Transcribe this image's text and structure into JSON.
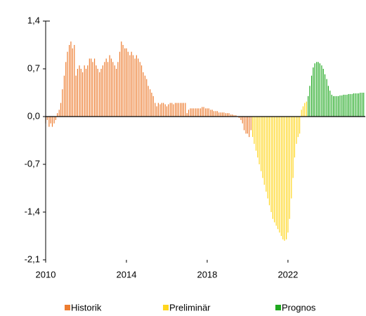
{
  "chart_data": {
    "type": "bar",
    "xlim": [
      2010,
      2025.83
    ],
    "xticks": [
      2010,
      2014,
      2018,
      2022
    ],
    "ylim": [
      -2.1,
      1.4
    ],
    "yticks": [
      {
        "value": 1.4,
        "label": "1,4"
      },
      {
        "value": 0.7,
        "label": "0,7"
      },
      {
        "value": 0,
        "label": "0,0"
      },
      {
        "value": -0.7,
        "label": "-0,7"
      },
      {
        "value": -1.4,
        "label": "-1,4"
      },
      {
        "value": -2.1,
        "label": "-2,1"
      }
    ],
    "legend": "bottom",
    "series": [
      {
        "name": "Historik",
        "color": "#ed7d31",
        "x": [
          2010.0,
          2010.08,
          2010.17,
          2010.25,
          2010.33,
          2010.42,
          2010.5,
          2010.58,
          2010.67,
          2010.75,
          2010.83,
          2010.92,
          2011.0,
          2011.08,
          2011.17,
          2011.25,
          2011.33,
          2011.42,
          2011.5,
          2011.58,
          2011.67,
          2011.75,
          2011.83,
          2011.92,
          2012.0,
          2012.08,
          2012.17,
          2012.25,
          2012.33,
          2012.42,
          2012.5,
          2012.58,
          2012.67,
          2012.75,
          2012.83,
          2012.92,
          2013.0,
          2013.08,
          2013.17,
          2013.25,
          2013.33,
          2013.42,
          2013.5,
          2013.58,
          2013.67,
          2013.75,
          2013.83,
          2013.92,
          2014.0,
          2014.08,
          2014.17,
          2014.25,
          2014.33,
          2014.42,
          2014.5,
          2014.58,
          2014.67,
          2014.75,
          2014.83,
          2014.92,
          2015.0,
          2015.08,
          2015.17,
          2015.25,
          2015.33,
          2015.42,
          2015.5,
          2015.58,
          2015.67,
          2015.75,
          2015.83,
          2015.92,
          2016.0,
          2016.08,
          2016.17,
          2016.25,
          2016.33,
          2016.42,
          2016.5,
          2016.58,
          2016.67,
          2016.75,
          2016.83,
          2016.92,
          2017.0,
          2017.08,
          2017.17,
          2017.25,
          2017.33,
          2017.42,
          2017.5,
          2017.58,
          2017.67,
          2017.75,
          2017.83,
          2017.92,
          2018.0,
          2018.08,
          2018.17,
          2018.25,
          2018.33,
          2018.42,
          2018.5,
          2018.58,
          2018.67,
          2018.75,
          2018.83,
          2018.92,
          2019.0,
          2019.08,
          2019.17,
          2019.25,
          2019.33,
          2019.42,
          2019.5,
          2019.58,
          2019.67,
          2019.75,
          2019.83,
          2019.92,
          2020.0,
          2020.08,
          2020.17
        ],
        "values": [
          -0.1,
          -0.05,
          -0.15,
          -0.1,
          -0.15,
          -0.1,
          -0.05,
          0.05,
          0.1,
          0.2,
          0.4,
          0.6,
          0.8,
          0.95,
          1.05,
          1.1,
          1.0,
          1.05,
          0.6,
          0.7,
          0.75,
          0.7,
          0.65,
          0.75,
          0.7,
          0.75,
          0.85,
          0.85,
          0.8,
          0.85,
          0.75,
          0.7,
          0.65,
          0.7,
          0.75,
          0.8,
          0.85,
          0.8,
          0.9,
          0.85,
          0.8,
          0.75,
          0.7,
          0.8,
          0.95,
          1.1,
          1.05,
          1.0,
          1.0,
          0.95,
          0.9,
          0.95,
          0.9,
          0.85,
          0.9,
          0.85,
          0.8,
          0.75,
          0.65,
          0.6,
          0.55,
          0.45,
          0.4,
          0.35,
          0.3,
          0.2,
          0.15,
          0.2,
          0.18,
          0.2,
          0.2,
          0.18,
          0.15,
          0.18,
          0.2,
          0.2,
          0.18,
          0.2,
          0.2,
          0.2,
          0.2,
          0.2,
          0.2,
          0.2,
          0.05,
          0.1,
          0.12,
          0.12,
          0.12,
          0.12,
          0.12,
          0.12,
          0.12,
          0.14,
          0.14,
          0.12,
          0.12,
          0.12,
          0.1,
          0.1,
          0.08,
          0.08,
          0.08,
          0.06,
          0.06,
          0.06,
          0.06,
          0.05,
          0.05,
          0.05,
          0.03,
          0.03,
          0.02,
          0.02,
          0.0,
          -0.02,
          -0.05,
          -0.1,
          -0.2,
          -0.25,
          -0.25,
          -0.3,
          -0.2
        ]
      },
      {
        "name": "Preliminär",
        "color": "#ffd61f",
        "x": [
          2020.25,
          2020.33,
          2020.42,
          2020.5,
          2020.58,
          2020.67,
          2020.75,
          2020.83,
          2020.92,
          2021.0,
          2021.08,
          2021.17,
          2021.25,
          2021.33,
          2021.42,
          2021.5,
          2021.58,
          2021.67,
          2021.75,
          2021.83,
          2021.92,
          2022.0,
          2022.08,
          2022.17,
          2022.25,
          2022.33,
          2022.42,
          2022.5,
          2022.58,
          2022.67,
          2022.75,
          2022.83,
          2022.92
        ],
        "values": [
          -0.3,
          -0.4,
          -0.5,
          -0.6,
          -0.7,
          -0.8,
          -0.9,
          -1.0,
          -1.1,
          -1.2,
          -1.3,
          -1.4,
          -1.5,
          -1.55,
          -1.6,
          -1.65,
          -1.7,
          -1.75,
          -1.8,
          -1.82,
          -1.8,
          -1.7,
          -1.5,
          -1.2,
          -0.9,
          -0.6,
          -0.4,
          -0.3,
          -0.25,
          0.1,
          0.15,
          0.2,
          0.22
        ]
      },
      {
        "name": "Prognos",
        "color": "#1fa81f",
        "x": [
          2023.0,
          2023.08,
          2023.17,
          2023.25,
          2023.33,
          2023.42,
          2023.5,
          2023.58,
          2023.67,
          2023.75,
          2023.83,
          2023.92,
          2024.0,
          2024.08,
          2024.17,
          2024.25,
          2024.33,
          2024.42,
          2024.5,
          2024.58,
          2024.67,
          2024.75,
          2024.83,
          2024.92,
          2025.0,
          2025.08,
          2025.17,
          2025.25,
          2025.33,
          2025.42,
          2025.5,
          2025.58,
          2025.67,
          2025.75
        ],
        "values": [
          0.3,
          0.45,
          0.6,
          0.72,
          0.78,
          0.8,
          0.8,
          0.78,
          0.75,
          0.7,
          0.62,
          0.55,
          0.45,
          0.38,
          0.32,
          0.3,
          0.3,
          0.3,
          0.3,
          0.31,
          0.31,
          0.32,
          0.32,
          0.32,
          0.33,
          0.33,
          0.33,
          0.34,
          0.34,
          0.34,
          0.34,
          0.35,
          0.35,
          0.35
        ]
      }
    ]
  }
}
